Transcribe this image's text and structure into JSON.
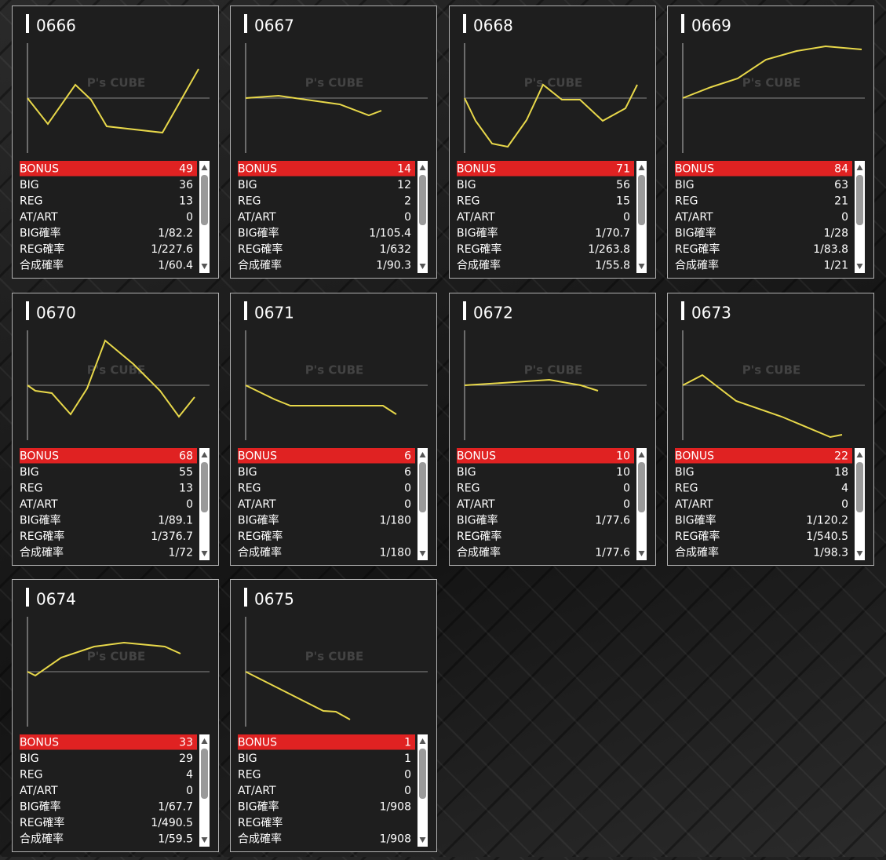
{
  "watermark": "P's CUBE",
  "row_labels": [
    "BONUS",
    "BIG",
    "REG",
    "AT/ART",
    "BIG確率",
    "REG確率",
    "合成確率"
  ],
  "cards": [
    {
      "title": "0666",
      "chart": {
        "type": "line",
        "color": "#e8d84a",
        "xlim": [
          0,
          232
        ],
        "ylim": [
          -70,
          70
        ],
        "x": [
          0,
          26,
          61,
          81,
          101,
          172,
          218
        ],
        "values": [
          0,
          -33,
          17,
          -2,
          -36,
          -44,
          37
        ]
      },
      "stats": [
        49,
        36,
        13,
        0,
        "1/82.2",
        "1/227.6",
        "1/60.4"
      ]
    },
    {
      "title": "0667",
      "chart": {
        "type": "line",
        "color": "#e8d84a",
        "xlim": [
          0,
          232
        ],
        "ylim": [
          -70,
          70
        ],
        "x": [
          0,
          42,
          77,
          120,
          157,
          173
        ],
        "values": [
          0,
          3,
          -2,
          -8,
          -22,
          -16
        ]
      },
      "stats": [
        14,
        12,
        2,
        0,
        "1/105.4",
        "1/632",
        "1/90.3"
      ]
    },
    {
      "title": "0668",
      "chart": {
        "type": "line",
        "color": "#e8d84a",
        "xlim": [
          0,
          232
        ],
        "ylim": [
          -70,
          70
        ],
        "x": [
          0,
          14,
          35,
          55,
          79,
          100,
          124,
          147,
          176,
          205,
          220
        ],
        "values": [
          0,
          -29,
          -58,
          -62,
          -28,
          17,
          -2,
          -2,
          -29,
          -13,
          17
        ]
      },
      "stats": [
        71,
        56,
        15,
        0,
        "1/70.7",
        "1/263.8",
        "1/55.8"
      ]
    },
    {
      "title": "0669",
      "chart": {
        "type": "line",
        "color": "#e8d84a",
        "xlim": [
          0,
          232
        ],
        "ylim": [
          -70,
          70
        ],
        "x": [
          0,
          36,
          70,
          106,
          145,
          182,
          228
        ],
        "values": [
          0,
          14,
          25,
          49,
          60,
          66,
          62
        ]
      },
      "stats": [
        84,
        63,
        21,
        0,
        "1/28",
        "1/83.8",
        "1/21"
      ]
    },
    {
      "title": "0670",
      "chart": {
        "type": "line",
        "color": "#e8d84a",
        "xlim": [
          0,
          232
        ],
        "ylim": [
          -70,
          70
        ],
        "x": [
          0,
          10,
          31,
          55,
          76,
          99,
          135,
          169,
          193,
          213
        ],
        "values": [
          0,
          -7,
          -10,
          -37,
          -4,
          57,
          27,
          -7,
          -40,
          -15
        ]
      },
      "stats": [
        68,
        55,
        13,
        0,
        "1/89.1",
        "1/376.7",
        "1/72"
      ]
    },
    {
      "title": "0671",
      "chart": {
        "type": "line",
        "color": "#e8d84a",
        "xlim": [
          0,
          232
        ],
        "ylim": [
          -70,
          70
        ],
        "x": [
          0,
          37,
          57,
          175,
          192
        ],
        "values": [
          0,
          -18,
          -26,
          -26,
          -37
        ]
      },
      "stats": [
        6,
        6,
        0,
        0,
        "1/180",
        null,
        "1/180"
      ]
    },
    {
      "title": "0672",
      "chart": {
        "type": "line",
        "color": "#e8d84a",
        "xlim": [
          0,
          232
        ],
        "ylim": [
          -70,
          70
        ],
        "x": [
          0,
          48,
          108,
          148,
          170
        ],
        "values": [
          0,
          3,
          7,
          0,
          -7
        ]
      },
      "stats": [
        10,
        10,
        0,
        0,
        "1/77.6",
        null,
        "1/77.6"
      ]
    },
    {
      "title": "0673",
      "chart": {
        "type": "line",
        "color": "#e8d84a",
        "xlim": [
          0,
          232
        ],
        "ylim": [
          -70,
          70
        ],
        "x": [
          0,
          25,
          68,
          126,
          188,
          203
        ],
        "values": [
          0,
          13,
          -20,
          -40,
          -66,
          -63
        ]
      },
      "stats": [
        22,
        18,
        4,
        0,
        "1/120.2",
        "1/540.5",
        "1/98.3"
      ]
    },
    {
      "title": "0674",
      "chart": {
        "type": "line",
        "color": "#e8d84a",
        "xlim": [
          0,
          232
        ],
        "ylim": [
          -70,
          70
        ],
        "x": [
          0,
          10,
          43,
          85,
          123,
          175,
          195
        ],
        "values": [
          0,
          -5,
          18,
          32,
          37,
          32,
          23
        ]
      },
      "stats": [
        33,
        29,
        4,
        0,
        "1/67.7",
        "1/490.5",
        "1/59.5"
      ]
    },
    {
      "title": "0675",
      "chart": {
        "type": "line",
        "color": "#e8d84a",
        "xlim": [
          0,
          232
        ],
        "ylim": [
          -70,
          70
        ],
        "x": [
          0,
          99,
          115,
          133
        ],
        "values": [
          0,
          -50,
          -51,
          -61
        ]
      },
      "stats": [
        1,
        1,
        0,
        0,
        "1/908",
        null,
        "1/908"
      ]
    }
  ]
}
